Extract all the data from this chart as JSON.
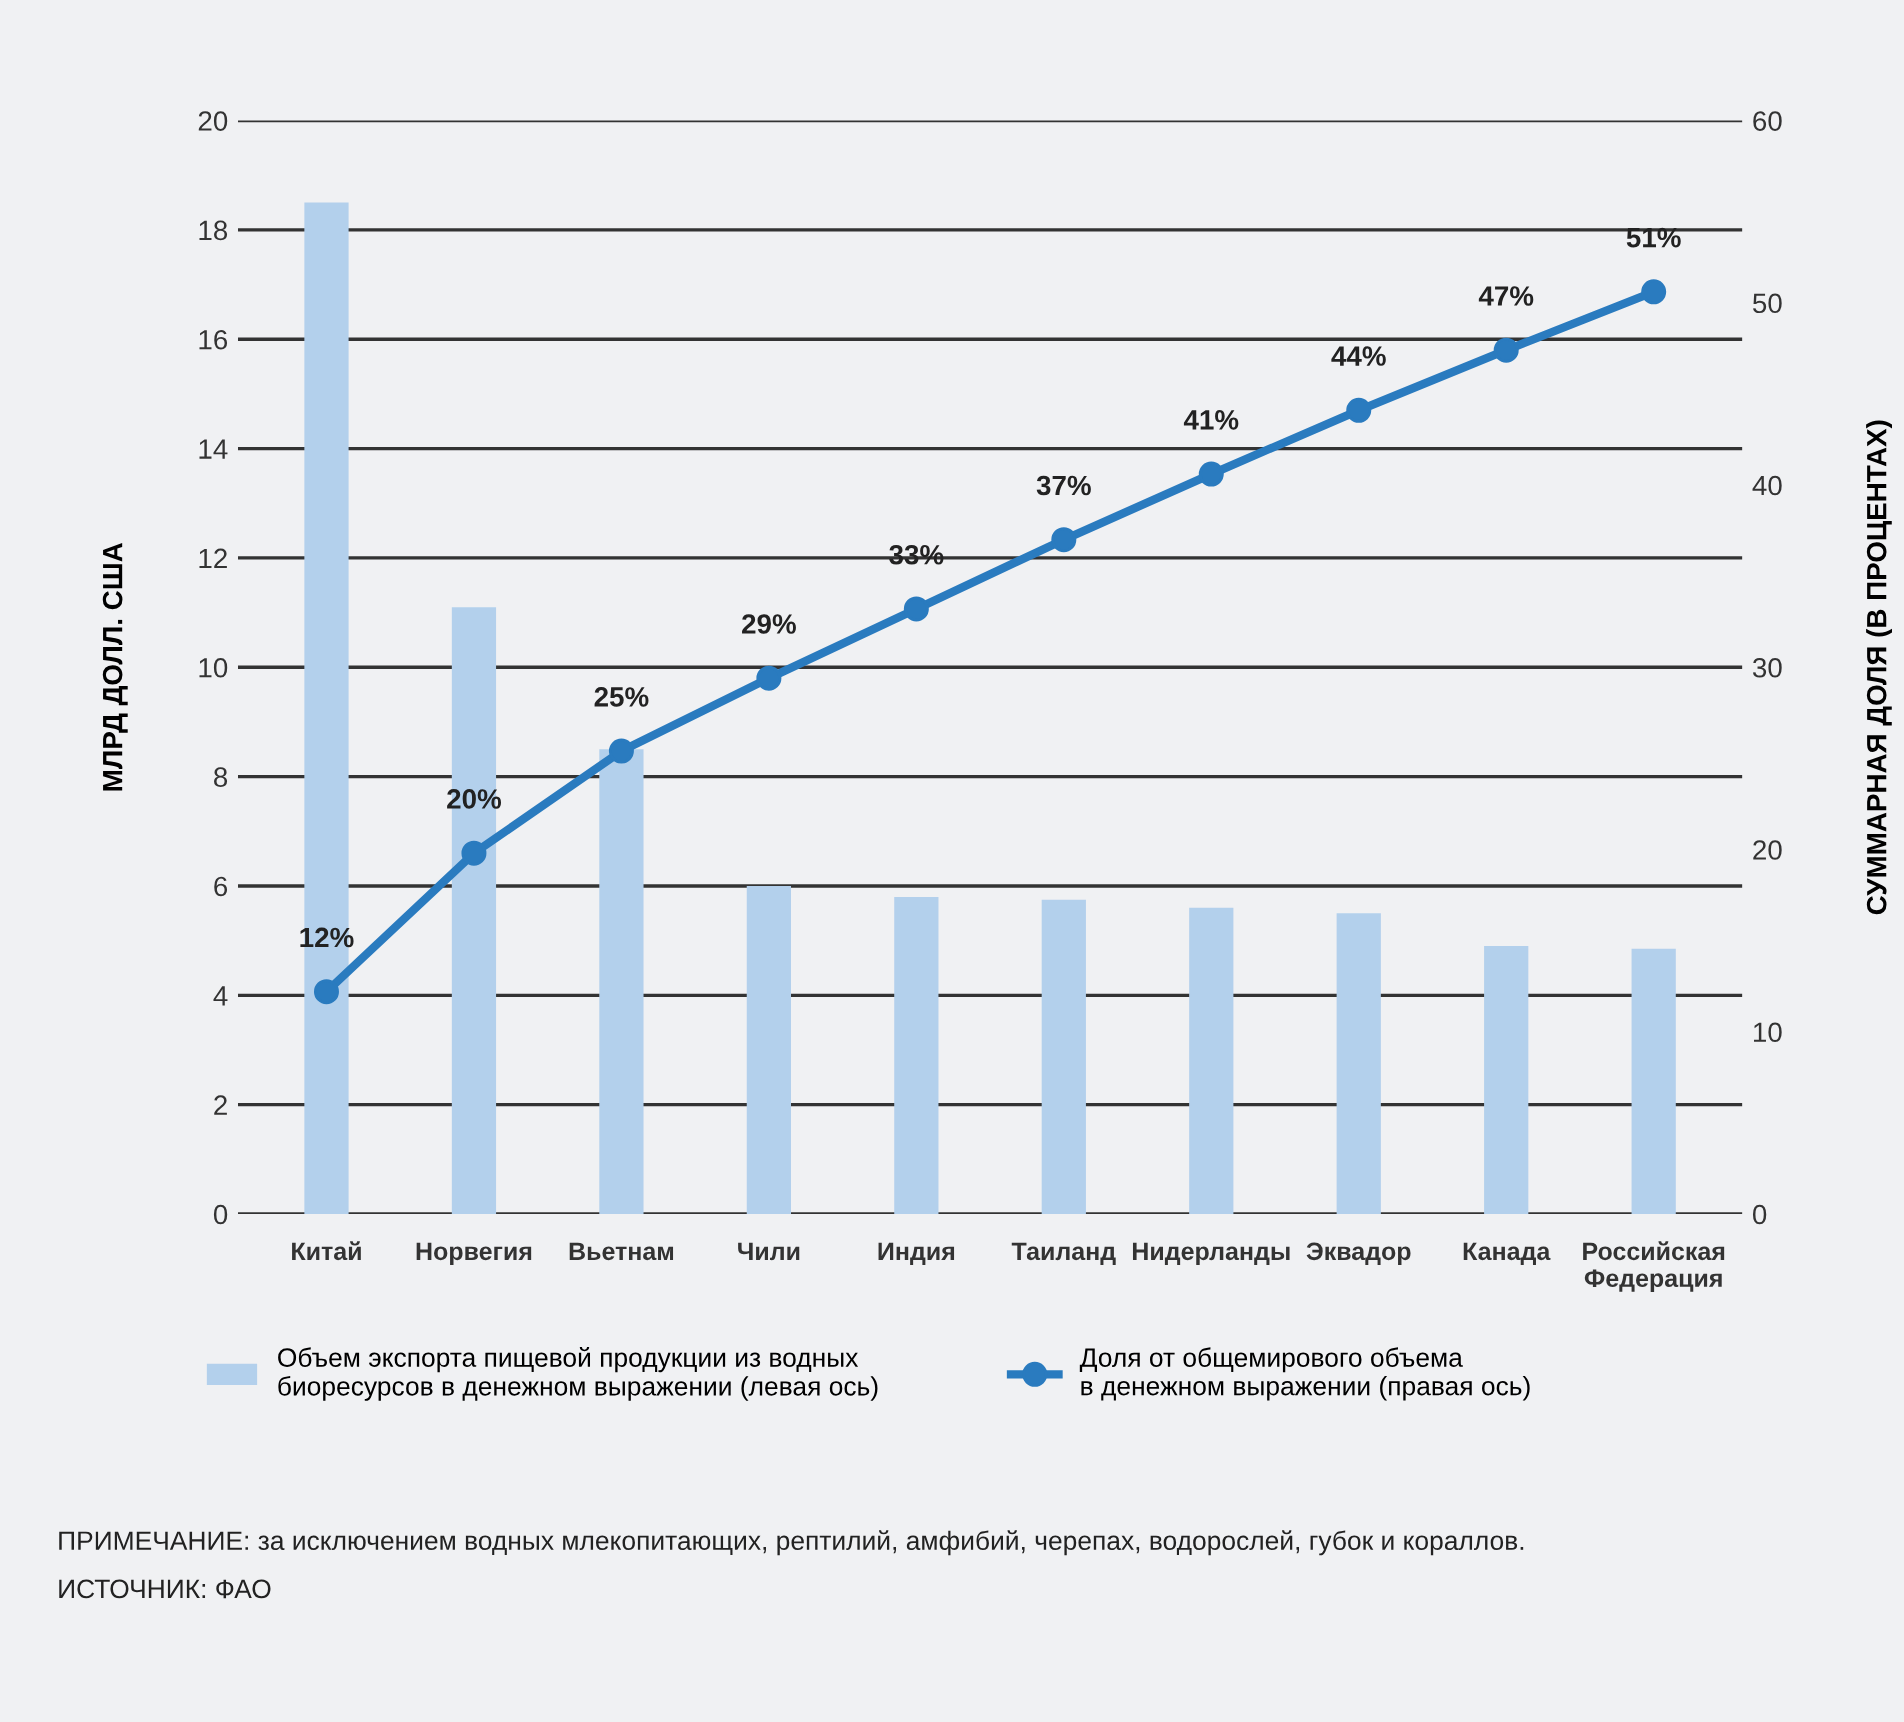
{
  "chart_data": {
    "type": "bar",
    "ylabel": "МЛРД ДОЛЛ. США",
    "y2label": "СУММАРНАЯ ДОЛЯ (В ПРОЦЕНТАХ)",
    "categories": [
      "Китай",
      "Норвегия",
      "Вьетнам",
      "Чили",
      "Индия",
      "Таиланд",
      "Нидерланды",
      "Эквадор",
      "Канада",
      "Российская\nФедерация"
    ],
    "series": [
      {
        "name": "Объем экспорта пищевой продукции из водных\nбиоресурсов в денежном выражении (левая ось)",
        "color": "#b3d0ec",
        "values": [
          18.5,
          11.1,
          8.5,
          6.0,
          5.8,
          5.75,
          5.6,
          5.5,
          4.9,
          4.85
        ]
      },
      {
        "name": "Доля от общемирового объема\nв денежном выражении (правая ось)",
        "type": "line",
        "axis": "y2",
        "color": "#2a7bbf",
        "marker": "circle",
        "values": [
          12.2,
          19.8,
          25.4,
          29.4,
          33.2,
          37,
          40.6,
          44.1,
          47.4,
          50.6
        ],
        "value_labels": [
          "12%",
          "20%",
          "25%",
          "29%",
          "33%",
          "37%",
          "41%",
          "44%",
          "47%",
          "51%"
        ]
      }
    ],
    "ylim": [
      0,
      20
    ],
    "yticks": [
      0,
      2,
      4,
      6,
      8,
      10,
      12,
      14,
      16,
      18,
      20
    ],
    "y2lim": [
      0,
      60
    ],
    "y2ticks": [
      0,
      10,
      20,
      30,
      40,
      50,
      60
    ],
    "grid": "y",
    "legend": "bottom",
    "annotations": [
      "ПРИМЕЧАНИЕ: за исключением водных млекопитающих, рептилий, амфибий, черепах, водорослей, губок и кораллов.",
      "ИСТОЧНИК: ФАО"
    ]
  }
}
